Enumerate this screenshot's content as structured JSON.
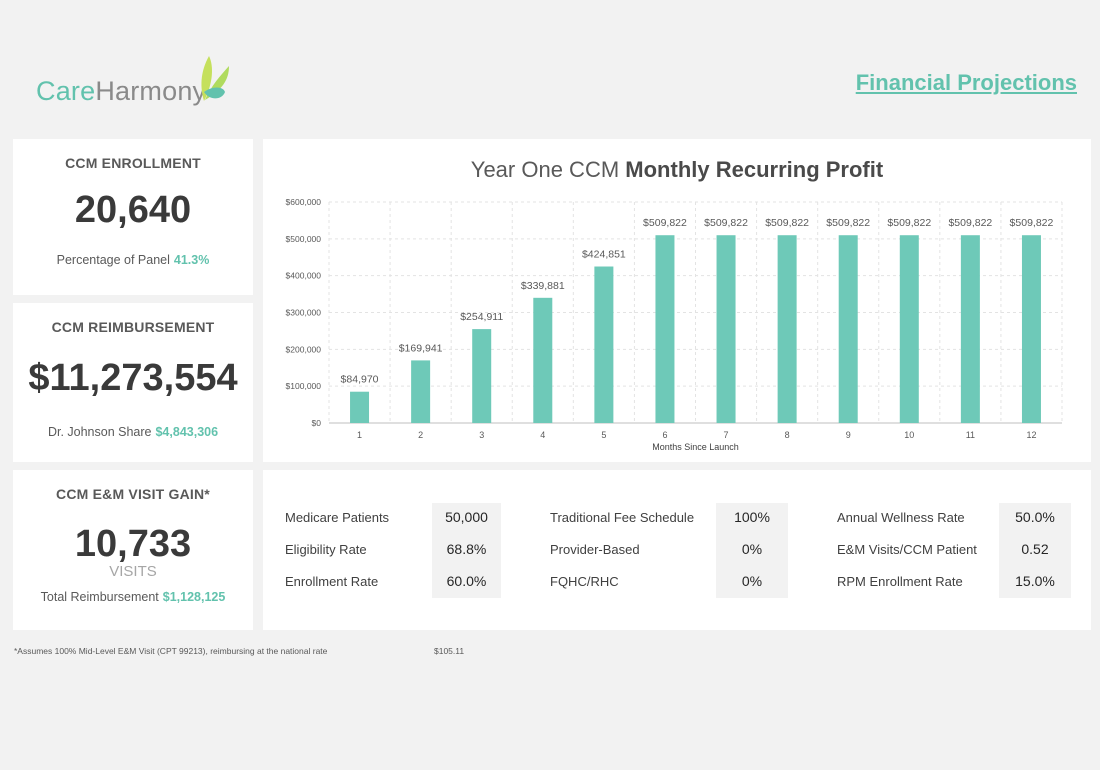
{
  "brand": {
    "name_part1": "Care",
    "name_part2": "Harmony",
    "logo_colors": {
      "primary": "#62c2ad",
      "secondary": "#c5e05c"
    }
  },
  "header": {
    "title": "Financial Projections"
  },
  "colors": {
    "accent": "#62c2ad",
    "bar": "#6ec9b8"
  },
  "enrollment": {
    "title": "CCM ENROLLMENT",
    "value": "20,640",
    "sub_label": "Percentage of Panel",
    "sub_value": "41.3%"
  },
  "reimbursement": {
    "title": "CCM REIMBURSEMENT",
    "value": "$11,273,554",
    "sub_label": "Dr. Johnson Share",
    "sub_value": "$4,843,306"
  },
  "visit_gain": {
    "title": "CCM E&M VISIT GAIN*",
    "value": "10,733",
    "unit": "VISITS",
    "sub_label": "Total Reimbursement",
    "sub_value": "$1,128,125"
  },
  "chart_title": {
    "light": "Year One CCM",
    "bold": "Monthly Recurring Profit"
  },
  "chart_data": {
    "type": "bar",
    "title": "Year One CCM Monthly Recurring Profit",
    "xlabel": "Months Since Launch",
    "ylabel": "",
    "categories": [
      "1",
      "2",
      "3",
      "4",
      "5",
      "6",
      "7",
      "8",
      "9",
      "10",
      "11",
      "12"
    ],
    "values": [
      84970,
      169941,
      254911,
      339881,
      424851,
      509822,
      509822,
      509822,
      509822,
      509822,
      509822,
      509822
    ],
    "data_labels": [
      "$84,970",
      "$169,941",
      "$254,911",
      "$339,881",
      "$424,851",
      "$509,822",
      "$509,822",
      "$509,822",
      "$509,822",
      "$509,822",
      "$509,822",
      "$509,822"
    ],
    "ylim": [
      0,
      600000
    ],
    "yticks": [
      0,
      100000,
      200000,
      300000,
      400000,
      500000,
      600000
    ],
    "ytick_labels": [
      "$0",
      "$100,000",
      "$200,000",
      "$300,000",
      "$400,000",
      "$500,000",
      "$600,000"
    ],
    "grid": true,
    "legend": "none"
  },
  "params": {
    "col1": [
      {
        "label": "Medicare Patients",
        "value": "50,000"
      },
      {
        "label": "Eligibility Rate",
        "value": "68.8%"
      },
      {
        "label": "Enrollment Rate",
        "value": "60.0%"
      }
    ],
    "col2": [
      {
        "label": "Traditional Fee Schedule",
        "value": "100%"
      },
      {
        "label": "Provider-Based",
        "value": "0%"
      },
      {
        "label": "FQHC/RHC",
        "value": "0%"
      }
    ],
    "col3": [
      {
        "label": "Annual Wellness Rate",
        "value": "50.0%"
      },
      {
        "label": "E&M Visits/CCM Patient",
        "value": "0.52"
      },
      {
        "label": "RPM Enrollment Rate",
        "value": "15.0%"
      }
    ]
  },
  "footnote": {
    "text": "*Assumes 100% Mid-Level E&M Visit (CPT 99213), reimbursing at the national rate",
    "value": "$105.11"
  }
}
